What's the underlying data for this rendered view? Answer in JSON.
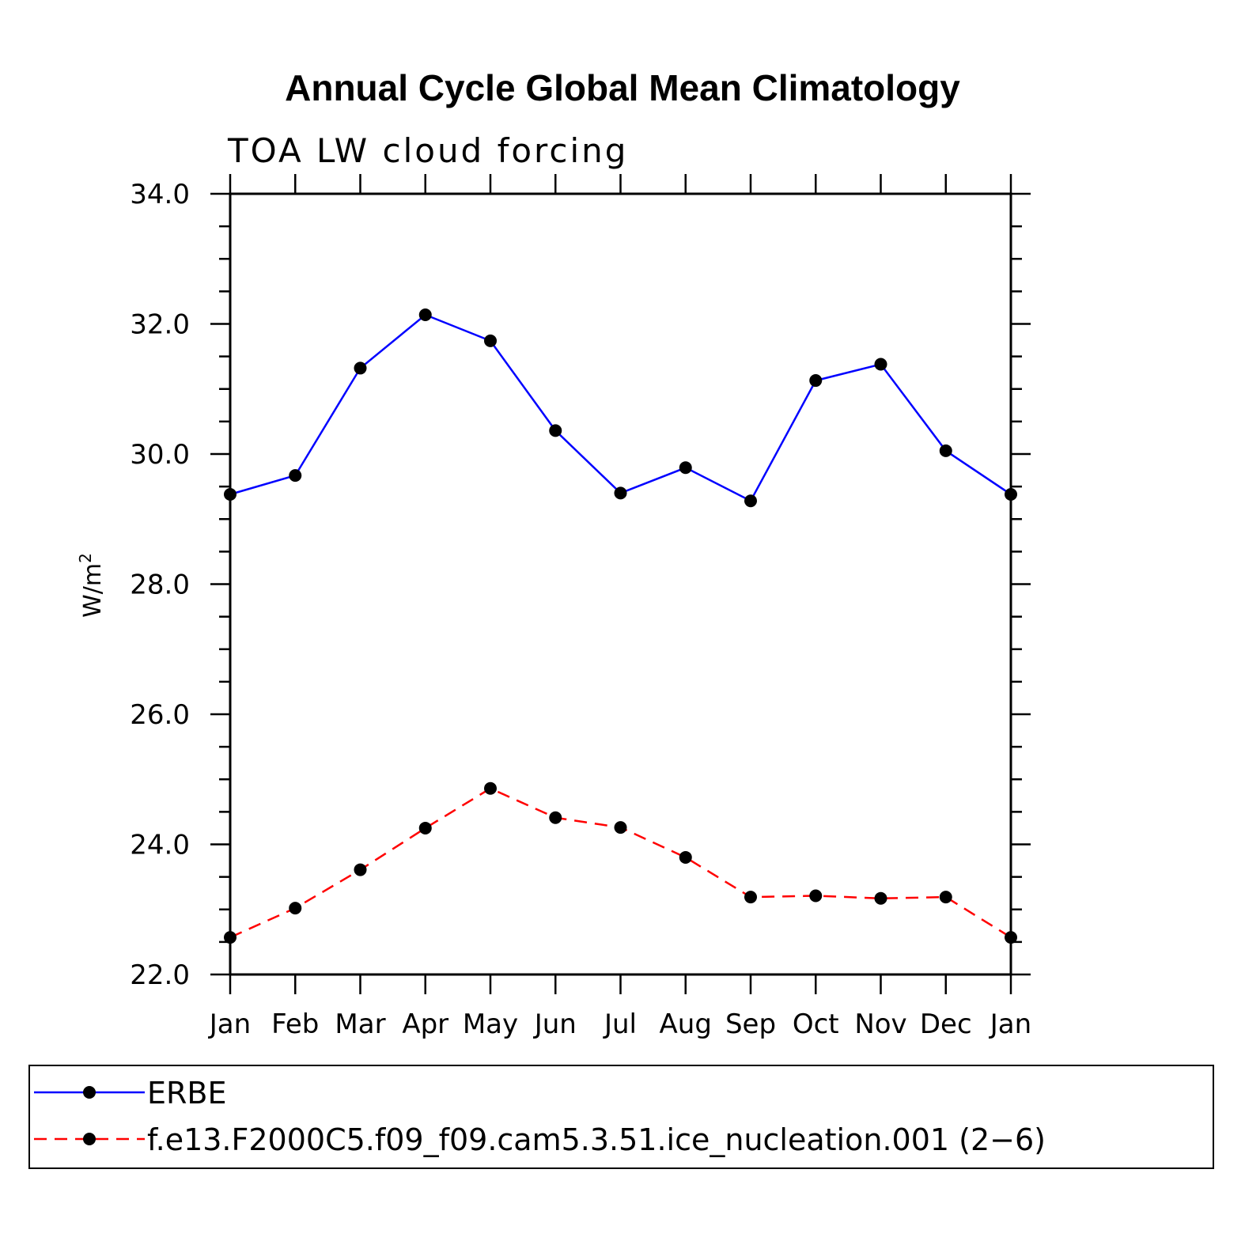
{
  "chart_data": {
    "type": "line",
    "title": "Annual Cycle Global Mean Climatology",
    "subtitle": "TOA LW cloud forcing",
    "ylabel": "W/m",
    "ylabel_superscript": "2",
    "xlabel": "",
    "categories": [
      "Jan",
      "Feb",
      "Mar",
      "Apr",
      "May",
      "Jun",
      "Jul",
      "Aug",
      "Sep",
      "Oct",
      "Nov",
      "Dec",
      "Jan"
    ],
    "ylim": [
      22.0,
      34.0
    ],
    "yticks": [
      "22.0",
      "24.0",
      "26.0",
      "28.0",
      "30.0",
      "32.0",
      "34.0"
    ],
    "grid": false,
    "legend_position": "bottom",
    "series": [
      {
        "name": "ERBE",
        "color": "#0000ff",
        "line_style": "solid",
        "marker": "filled-circle",
        "values": [
          29.38,
          29.67,
          31.32,
          32.14,
          31.74,
          30.36,
          29.4,
          29.79,
          29.28,
          31.13,
          31.38,
          30.05,
          29.38
        ]
      },
      {
        "name": "f.e13.F2000C5.f09_f09.cam5.3.51.ice_nucleation.001 (2−6)",
        "color": "#ff0000",
        "line_style": "dashed",
        "marker": "filled-circle",
        "values": [
          22.57,
          23.02,
          23.61,
          24.25,
          24.86,
          24.41,
          24.26,
          23.8,
          23.19,
          23.21,
          23.17,
          23.19,
          22.57
        ]
      }
    ]
  }
}
